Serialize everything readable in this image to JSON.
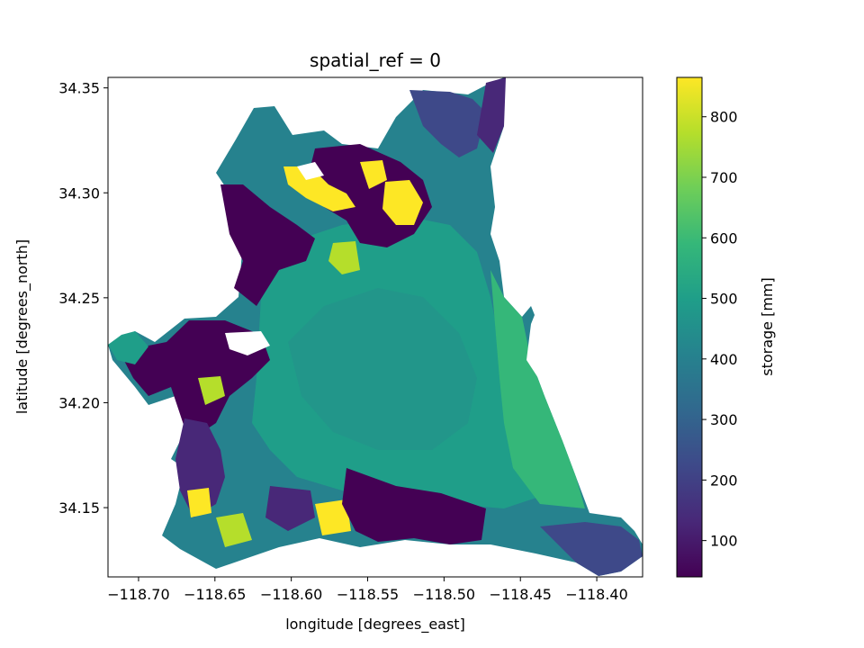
{
  "chart_data": {
    "type": "heatmap",
    "title": "spatial_ref = 0",
    "xlabel": "longitude [degrees_east]",
    "ylabel": "latitude [degrees_north]",
    "xlim": [
      -118.72,
      -118.37
    ],
    "ylim": [
      34.117,
      34.355
    ],
    "x_ticks": [
      -118.7,
      -118.65,
      -118.6,
      -118.55,
      -118.5,
      -118.45,
      -118.4
    ],
    "x_tick_labels": [
      "−118.70",
      "−118.65",
      "−118.60",
      "−118.55",
      "−118.50",
      "−118.45",
      "−118.40"
    ],
    "y_ticks": [
      34.15,
      34.2,
      34.25,
      34.3,
      34.35
    ],
    "y_tick_labels": [
      "34.15",
      "34.20",
      "34.25",
      "34.30",
      "34.35"
    ],
    "colorbar": {
      "label": "storage [mm]",
      "colormap": "viridis",
      "range": [
        40,
        865
      ],
      "ticks": [
        100,
        200,
        300,
        400,
        500,
        600,
        700,
        800
      ],
      "tick_labels": [
        "100",
        "200",
        "300",
        "400",
        "500",
        "600",
        "700",
        "800"
      ]
    },
    "region": {
      "description": "watershed raster of storage values; outside region is empty (white)",
      "dominant_value": 480
    },
    "grid": false
  },
  "colors": {
    "viridis_stops": [
      "#440154",
      "#482878",
      "#3e4989",
      "#31688e",
      "#26828e",
      "#1f9e89",
      "#35b779",
      "#6ece58",
      "#b5de2b",
      "#fde725"
    ]
  }
}
